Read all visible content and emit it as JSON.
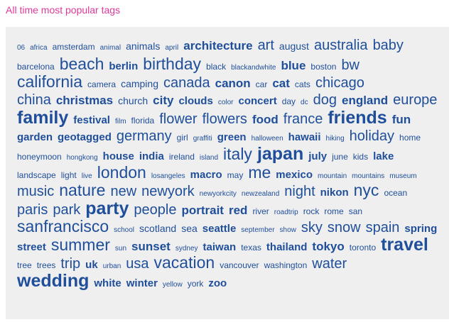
{
  "heading": "All time most popular tags",
  "colors": {
    "heading": "#e0399a",
    "tag": "#1f4e9a",
    "panel_background": "#efefef"
  },
  "tag_lines": [
    [
      {
        "text": "06",
        "size": 1
      },
      {
        "text": "africa",
        "size": 1
      },
      {
        "text": "amsterdam",
        "size": 2
      },
      {
        "text": "animal",
        "size": 1
      },
      {
        "text": "animals",
        "size": 3
      },
      {
        "text": "april",
        "size": 1
      },
      {
        "text": "architecture",
        "size": 5
      },
      {
        "text": "art",
        "size": 6
      },
      {
        "text": "august",
        "size": 3
      },
      {
        "text": "australia",
        "size": 6
      },
      {
        "text": "baby",
        "size": 6
      }
    ],
    [
      {
        "text": "barcelona",
        "size": 2
      },
      {
        "text": "beach",
        "size": 7
      },
      {
        "text": "berlin",
        "size": 4
      },
      {
        "text": "birthday",
        "size": 7
      },
      {
        "text": "black",
        "size": 2
      },
      {
        "text": "blackandwhite",
        "size": 1
      },
      {
        "text": "blue",
        "size": 5
      },
      {
        "text": "boston",
        "size": 2
      },
      {
        "text": "bw",
        "size": 6
      }
    ],
    [
      {
        "text": "california",
        "size": 7
      },
      {
        "text": "camera",
        "size": 2
      },
      {
        "text": "camping",
        "size": 3
      },
      {
        "text": "canada",
        "size": 6
      },
      {
        "text": "canon",
        "size": 5
      },
      {
        "text": "car",
        "size": 2
      },
      {
        "text": "cat",
        "size": 5
      },
      {
        "text": "cats",
        "size": 2
      },
      {
        "text": "chicago",
        "size": 6
      }
    ],
    [
      {
        "text": "china",
        "size": 6
      },
      {
        "text": "christmas",
        "size": 5
      },
      {
        "text": "church",
        "size": 3
      },
      {
        "text": "city",
        "size": 5
      },
      {
        "text": "clouds",
        "size": 4
      },
      {
        "text": "color",
        "size": 1
      },
      {
        "text": "concert",
        "size": 4
      },
      {
        "text": "day",
        "size": 2
      },
      {
        "text": "dc",
        "size": 1
      },
      {
        "text": "dog",
        "size": 6
      },
      {
        "text": "england",
        "size": 5
      },
      {
        "text": "europe",
        "size": 6
      }
    ],
    [
      {
        "text": "family",
        "size": 8
      },
      {
        "text": "festival",
        "size": 4
      },
      {
        "text": "film",
        "size": 1
      },
      {
        "text": "florida",
        "size": 2
      },
      {
        "text": "flower",
        "size": 6
      },
      {
        "text": "flowers",
        "size": 6
      },
      {
        "text": "food",
        "size": 5
      },
      {
        "text": "france",
        "size": 6
      },
      {
        "text": "friends",
        "size": 8
      },
      {
        "text": "fun",
        "size": 5
      }
    ],
    [
      {
        "text": "garden",
        "size": 4
      },
      {
        "text": "geotagged",
        "size": 4
      },
      {
        "text": "germany",
        "size": 6
      },
      {
        "text": "girl",
        "size": 2
      },
      {
        "text": "graffiti",
        "size": 1
      },
      {
        "text": "green",
        "size": 4
      },
      {
        "text": "halloween",
        "size": 1
      },
      {
        "text": "hawaii",
        "size": 4
      },
      {
        "text": "hiking",
        "size": 1
      },
      {
        "text": "holiday",
        "size": 6
      },
      {
        "text": "home",
        "size": 2
      }
    ],
    [
      {
        "text": "honeymoon",
        "size": 2
      },
      {
        "text": "hongkong",
        "size": 1
      },
      {
        "text": "house",
        "size": 4
      },
      {
        "text": "india",
        "size": 4
      },
      {
        "text": "ireland",
        "size": 2
      },
      {
        "text": "island",
        "size": 1
      },
      {
        "text": "italy",
        "size": 7
      },
      {
        "text": "japan",
        "size": 8
      },
      {
        "text": "july",
        "size": 4
      },
      {
        "text": "june",
        "size": 2
      },
      {
        "text": "kids",
        "size": 2
      },
      {
        "text": "lake",
        "size": 4
      }
    ],
    [
      {
        "text": "landscape",
        "size": 2
      },
      {
        "text": "light",
        "size": 2
      },
      {
        "text": "live",
        "size": 1
      },
      {
        "text": "london",
        "size": 7
      },
      {
        "text": "losangeles",
        "size": 1
      },
      {
        "text": "macro",
        "size": 4
      },
      {
        "text": "may",
        "size": 2
      },
      {
        "text": "me",
        "size": 7
      },
      {
        "text": "mexico",
        "size": 4
      },
      {
        "text": "mountain",
        "size": 1
      },
      {
        "text": "mountains",
        "size": 1
      },
      {
        "text": "museum",
        "size": 1
      }
    ],
    [
      {
        "text": "music",
        "size": 6
      },
      {
        "text": "nature",
        "size": 7
      },
      {
        "text": "new",
        "size": 6
      },
      {
        "text": "newyork",
        "size": 6
      },
      {
        "text": "newyorkcity",
        "size": 1
      },
      {
        "text": "newzealand",
        "size": 1
      },
      {
        "text": "night",
        "size": 6
      },
      {
        "text": "nikon",
        "size": 4
      },
      {
        "text": "nyc",
        "size": 7
      },
      {
        "text": "ocean",
        "size": 2
      }
    ],
    [
      {
        "text": "paris",
        "size": 6
      },
      {
        "text": "park",
        "size": 6
      },
      {
        "text": "party",
        "size": 8
      },
      {
        "text": "people",
        "size": 6
      },
      {
        "text": "portrait",
        "size": 5
      },
      {
        "text": "red",
        "size": 5
      },
      {
        "text": "river",
        "size": 2
      },
      {
        "text": "roadtrip",
        "size": 1
      },
      {
        "text": "rock",
        "size": 2
      },
      {
        "text": "rome",
        "size": 2
      },
      {
        "text": "san",
        "size": 2
      }
    ],
    [
      {
        "text": "sanfrancisco",
        "size": 7
      },
      {
        "text": "school",
        "size": 1
      },
      {
        "text": "scotland",
        "size": 3
      },
      {
        "text": "sea",
        "size": 3
      },
      {
        "text": "seattle",
        "size": 4
      },
      {
        "text": "september",
        "size": 1
      },
      {
        "text": "show",
        "size": 1
      },
      {
        "text": "sky",
        "size": 6
      },
      {
        "text": "snow",
        "size": 6
      },
      {
        "text": "spain",
        "size": 6
      },
      {
        "text": "spring",
        "size": 4
      }
    ],
    [
      {
        "text": "street",
        "size": 4
      },
      {
        "text": "summer",
        "size": 7
      },
      {
        "text": "sun",
        "size": 1
      },
      {
        "text": "sunset",
        "size": 5
      },
      {
        "text": "sydney",
        "size": 1
      },
      {
        "text": "taiwan",
        "size": 4
      },
      {
        "text": "texas",
        "size": 2
      },
      {
        "text": "thailand",
        "size": 4
      },
      {
        "text": "tokyo",
        "size": 5
      },
      {
        "text": "toronto",
        "size": 2
      },
      {
        "text": "travel",
        "size": 8
      }
    ],
    [
      {
        "text": "tree",
        "size": 2
      },
      {
        "text": "trees",
        "size": 2
      },
      {
        "text": "trip",
        "size": 6
      },
      {
        "text": "uk",
        "size": 4
      },
      {
        "text": "urban",
        "size": 1
      },
      {
        "text": "usa",
        "size": 6
      },
      {
        "text": "vacation",
        "size": 7
      },
      {
        "text": "vancouver",
        "size": 2
      },
      {
        "text": "washington",
        "size": 2
      },
      {
        "text": "water",
        "size": 6
      }
    ],
    [
      {
        "text": "wedding",
        "size": 8
      },
      {
        "text": "white",
        "size": 4
      },
      {
        "text": "winter",
        "size": 4
      },
      {
        "text": "yellow",
        "size": 1
      },
      {
        "text": "york",
        "size": 2
      },
      {
        "text": "zoo",
        "size": 4
      }
    ]
  ]
}
